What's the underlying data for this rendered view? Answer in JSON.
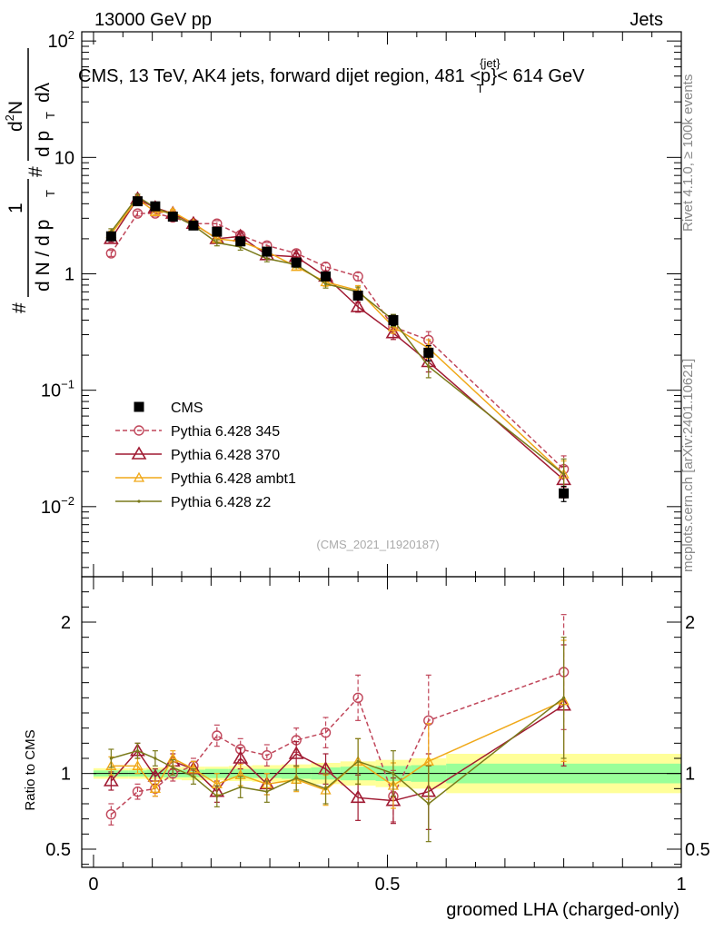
{
  "header": {
    "left": "13000 GeV pp",
    "right": "Jets",
    "title_prefix": "CMS, 13 TeV, AK4 jets, forward dijet region, 481 <p",
    "title_sup": "{jet}",
    "title_sub": "T",
    "title_suffix": "}< 614 GeV",
    "side_rivet": "Rivet 4.1.0, ≥ 100k events",
    "side_mcplots": "mcplots.cern.ch [arXiv:2401.10621]",
    "analysis_id": "(CMS_2021_I1920187)"
  },
  "colors": {
    "cms": "#000000",
    "p345": "#c0465a",
    "p370": "#a01a32",
    "ambt1": "#f0a818",
    "z2": "#7a7a1a",
    "band_outer": "#ffff99",
    "band_inner": "#99ff99"
  },
  "chart_data": [
    {
      "type": "line",
      "scale": "log",
      "ylabel": "1/dN/dp_T # d^2N/(dp_T dλ)",
      "ylabel_parts": {
        "num_a": "1",
        "den_a": "d N / d p",
        "sub_a": "T",
        "num_b": "d",
        "sup_b": "2",
        "num_b2": "N",
        "den_b": "d p",
        "sub_b": "T",
        "den_b2": "dλ",
        "hash": "#"
      },
      "ylim": [
        0.0025,
        120
      ],
      "yticks": [
        {
          "v": 0.01,
          "base": "10",
          "exp": "−2"
        },
        {
          "v": 0.1,
          "base": "10",
          "exp": "−1"
        },
        {
          "v": 1,
          "base": "1",
          "exp": ""
        },
        {
          "v": 10,
          "base": "10",
          "exp": ""
        },
        {
          "v": 100,
          "base": "10",
          "exp": "2"
        }
      ],
      "x": [
        0.03,
        0.075,
        0.105,
        0.135,
        0.17,
        0.21,
        0.25,
        0.295,
        0.345,
        0.395,
        0.45,
        0.51,
        0.57,
        0.8
      ],
      "series": [
        {
          "name": "CMS",
          "key": "cms",
          "values": [
            2.1,
            4.2,
            3.8,
            3.1,
            2.6,
            2.3,
            1.9,
            1.55,
            1.25,
            0.95,
            0.65,
            0.4,
            0.21,
            0.013
          ],
          "err": [
            0.08,
            0.08,
            0.08,
            0.08,
            0.08,
            0.08,
            0.08,
            0.08,
            0.08,
            0.08,
            0.08,
            0.1,
            0.15,
            0.15
          ]
        },
        {
          "name": "Pythia 6.428 345",
          "key": "p345",
          "values": [
            1.5,
            3.3,
            3.3,
            3.05,
            2.7,
            2.7,
            2.15,
            1.75,
            1.5,
            1.15,
            0.95,
            0.35,
            0.27,
            0.021
          ],
          "err": [
            0.06,
            0.05,
            0.05,
            0.05,
            0.05,
            0.06,
            0.06,
            0.06,
            0.06,
            0.08,
            0.08,
            0.12,
            0.18,
            0.3
          ]
        },
        {
          "name": "Pythia 6.428 370",
          "key": "p370",
          "values": [
            2.0,
            4.4,
            3.7,
            3.3,
            2.7,
            2.0,
            2.1,
            1.45,
            1.4,
            0.95,
            0.52,
            0.31,
            0.175,
            0.017
          ],
          "err": [
            0.06,
            0.05,
            0.05,
            0.05,
            0.05,
            0.06,
            0.06,
            0.06,
            0.06,
            0.08,
            0.1,
            0.12,
            0.18,
            0.3
          ]
        },
        {
          "name": "Pythia 6.428 ambt1",
          "key": "ambt1",
          "values": [
            2.2,
            4.4,
            3.4,
            3.4,
            2.7,
            2.0,
            1.9,
            1.55,
            1.15,
            0.85,
            0.72,
            0.35,
            0.23,
            0.019
          ],
          "err": [
            0.06,
            0.05,
            0.05,
            0.05,
            0.05,
            0.06,
            0.06,
            0.06,
            0.06,
            0.08,
            0.1,
            0.12,
            0.18,
            0.3
          ]
        },
        {
          "name": "Pythia 6.428 z2",
          "key": "z2",
          "values": [
            2.3,
            4.6,
            3.7,
            3.2,
            2.6,
            1.85,
            1.7,
            1.35,
            1.2,
            0.82,
            0.7,
            0.4,
            0.16,
            0.019
          ],
          "err": [
            0.06,
            0.05,
            0.05,
            0.05,
            0.05,
            0.06,
            0.06,
            0.06,
            0.06,
            0.08,
            0.1,
            0.12,
            0.2,
            0.35
          ]
        }
      ]
    },
    {
      "type": "line",
      "xlabel": "groomed LHA (charged-only)",
      "ylabel": "Ratio to CMS",
      "xlim": [
        -0.02,
        1.0
      ],
      "ylim": [
        0.38,
        2.3
      ],
      "xticks": [
        {
          "v": 0,
          "label": "0"
        },
        {
          "v": 0.5,
          "label": "0.5"
        },
        {
          "v": 1,
          "label": "1"
        }
      ],
      "yticks": [
        {
          "v": 0.5,
          "label": "0.5"
        },
        {
          "v": 1,
          "label": "1"
        },
        {
          "v": 2,
          "label": "2"
        }
      ],
      "bins": [
        {
          "lo": 0.0,
          "hi": 0.06,
          "outer": 0.035,
          "inner": 0.02
        },
        {
          "lo": 0.06,
          "hi": 0.09,
          "outer": 0.035,
          "inner": 0.02
        },
        {
          "lo": 0.09,
          "hi": 0.12,
          "outer": 0.04,
          "inner": 0.025
        },
        {
          "lo": 0.12,
          "hi": 0.15,
          "outer": 0.04,
          "inner": 0.025
        },
        {
          "lo": 0.15,
          "hi": 0.19,
          "outer": 0.045,
          "inner": 0.025
        },
        {
          "lo": 0.19,
          "hi": 0.23,
          "outer": 0.045,
          "inner": 0.03
        },
        {
          "lo": 0.23,
          "hi": 0.27,
          "outer": 0.05,
          "inner": 0.03
        },
        {
          "lo": 0.27,
          "hi": 0.32,
          "outer": 0.055,
          "inner": 0.03
        },
        {
          "lo": 0.32,
          "hi": 0.37,
          "outer": 0.06,
          "inner": 0.035
        },
        {
          "lo": 0.37,
          "hi": 0.42,
          "outer": 0.07,
          "inner": 0.04
        },
        {
          "lo": 0.42,
          "hi": 0.48,
          "outer": 0.08,
          "inner": 0.045
        },
        {
          "lo": 0.48,
          "hi": 0.54,
          "outer": 0.09,
          "inner": 0.05
        },
        {
          "lo": 0.54,
          "hi": 0.6,
          "outer": 0.1,
          "inner": 0.055
        },
        {
          "lo": 0.6,
          "hi": 1.0,
          "outer": 0.13,
          "inner": 0.065
        }
      ],
      "x": [
        0.03,
        0.075,
        0.105,
        0.135,
        0.17,
        0.21,
        0.25,
        0.295,
        0.345,
        0.395,
        0.45,
        0.51,
        0.57,
        0.8
      ],
      "series": [
        {
          "name": "Pythia 6.428 345",
          "key": "p345",
          "values": [
            0.73,
            0.88,
            0.9,
            1.0,
            1.05,
            1.25,
            1.16,
            1.12,
            1.22,
            1.27,
            1.5,
            0.85,
            1.35,
            1.67
          ],
          "err": [
            0.07,
            0.05,
            0.05,
            0.05,
            0.05,
            0.07,
            0.07,
            0.07,
            0.08,
            0.1,
            0.15,
            0.17,
            0.3,
            0.38
          ]
        },
        {
          "name": "Pythia 6.428 370",
          "key": "p370",
          "values": [
            0.95,
            1.15,
            0.98,
            1.08,
            1.03,
            0.88,
            1.1,
            0.93,
            1.13,
            1.03,
            0.84,
            0.82,
            0.88,
            1.45
          ],
          "err": [
            0.06,
            0.05,
            0.05,
            0.05,
            0.05,
            0.07,
            0.07,
            0.07,
            0.08,
            0.1,
            0.15,
            0.15,
            0.25,
            0.4
          ]
        },
        {
          "name": "Pythia 6.428 ambt1",
          "key": "ambt1",
          "values": [
            1.05,
            1.05,
            0.9,
            1.1,
            1.03,
            0.93,
            0.99,
            0.93,
            0.96,
            0.89,
            1.08,
            0.92,
            1.08,
            1.48
          ],
          "err": [
            0.06,
            0.05,
            0.05,
            0.05,
            0.05,
            0.07,
            0.07,
            0.07,
            0.08,
            0.1,
            0.15,
            0.15,
            0.25,
            0.4
          ]
        },
        {
          "name": "Pythia 6.428 z2",
          "key": "z2",
          "values": [
            1.1,
            1.15,
            1.1,
            1.04,
            0.98,
            0.85,
            0.91,
            0.88,
            0.97,
            0.9,
            1.08,
            1.0,
            0.8,
            1.5
          ],
          "err": [
            0.06,
            0.05,
            0.05,
            0.05,
            0.05,
            0.07,
            0.07,
            0.07,
            0.08,
            0.1,
            0.15,
            0.15,
            0.25,
            0.4
          ]
        }
      ]
    }
  ],
  "legend": [
    {
      "key": "cms",
      "label": "CMS"
    },
    {
      "key": "p345",
      "label": "Pythia 6.428 345"
    },
    {
      "key": "p370",
      "label": "Pythia 6.428 370"
    },
    {
      "key": "ambt1",
      "label": "Pythia 6.428 ambt1"
    },
    {
      "key": "z2",
      "label": "Pythia 6.428 z2"
    }
  ]
}
